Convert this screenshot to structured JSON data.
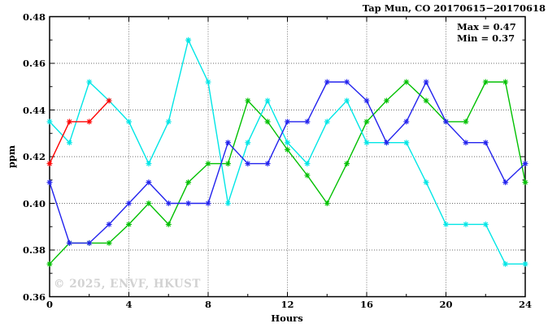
{
  "page": {
    "title": "Tap Mun, CO 20170615−20170618"
  },
  "annotation": {
    "max_text": "Max = 0.47",
    "min_text": "Min = 0.37"
  },
  "watermark": "© 2025, ENVF, HKUST",
  "chart_data": {
    "type": "line",
    "title": "Tap Mun, CO 20170615−20170618",
    "xlabel": "Hours",
    "ylabel": "ppm",
    "xlim": [
      0,
      24
    ],
    "ylim": [
      0.36,
      0.48
    ],
    "grid": "on",
    "legend": "none",
    "x_tick_values": [
      0,
      4,
      8,
      12,
      16,
      20,
      24
    ],
    "x_tick_labels": [
      "0",
      "4",
      "8",
      "12",
      "16",
      "20",
      "24"
    ],
    "x_minor_tick_step": 2,
    "y_tick_values": [
      0.36,
      0.38,
      0.4,
      0.42,
      0.44,
      0.46,
      0.48
    ],
    "y_tick_labels": [
      "0.36",
      "0.38",
      "0.40",
      "0.42",
      "0.44",
      "0.46",
      "0.48"
    ],
    "y_minor_tick_step": 0.01,
    "x_gridlines": [
      4,
      8,
      12,
      16,
      20
    ],
    "y_gridlines": [
      0.38,
      0.4,
      0.42,
      0.44,
      0.46
    ],
    "stats": {
      "max": 0.47,
      "min": 0.37
    },
    "x_hours": [
      0,
      1,
      2,
      3,
      4,
      5,
      6,
      7,
      8,
      9,
      10,
      11,
      12,
      13,
      14,
      15,
      16,
      17,
      18,
      19,
      20,
      21,
      22,
      23,
      24
    ],
    "series": [
      {
        "name": "green",
        "color": "#00c000",
        "start_hour": 0,
        "values": [
          0.374,
          0.383,
          0.383,
          0.383,
          0.391,
          0.4,
          0.391,
          0.409,
          0.417,
          0.417,
          0.444,
          0.435,
          0.423,
          0.412,
          0.4,
          0.417,
          0.435,
          0.444,
          0.452,
          0.444,
          0.435,
          0.435,
          0.452,
          0.452,
          0.409
        ]
      },
      {
        "name": "cyan",
        "color": "#00e6e6",
        "start_hour": 0,
        "values": [
          0.435,
          0.426,
          0.452,
          0.444,
          0.435,
          0.417,
          0.435,
          0.47,
          0.452,
          0.4,
          0.426,
          0.444,
          0.426,
          0.417,
          0.435,
          0.444,
          0.426,
          0.426,
          0.426,
          0.409,
          0.391,
          0.391,
          0.391,
          0.374,
          0.374
        ]
      },
      {
        "name": "blue",
        "color": "#2222ee",
        "start_hour": 0,
        "values": [
          0.409,
          0.383,
          0.383,
          0.391,
          0.4,
          0.409,
          0.4,
          0.4,
          0.4,
          0.426,
          0.417,
          0.417,
          0.435,
          0.435,
          0.452,
          0.452,
          0.444,
          0.426,
          0.435,
          0.452,
          0.435,
          0.426,
          0.426,
          0.409,
          0.417
        ]
      },
      {
        "name": "red",
        "color": "#ff0000",
        "start_hour": 0,
        "values": [
          0.417,
          0.435,
          0.435,
          0.444
        ]
      }
    ]
  }
}
